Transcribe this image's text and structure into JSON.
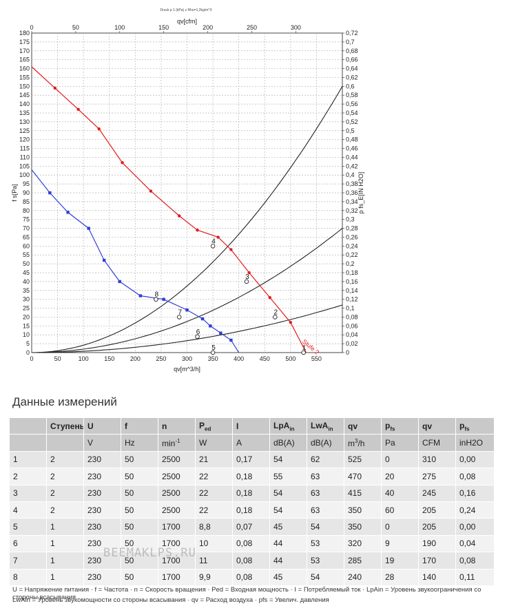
{
  "chart_data": {
    "type": "line",
    "top_note": "Druck p 1 (kPa) z Rho=1,2kg/m^3",
    "xlabel": "qv[m^3/h]",
    "x2label": "qv[cfm]",
    "ylabel": "f s[Pa]",
    "y2label": "p fs_E[IN H2O]",
    "xlim": [
      0,
      600
    ],
    "x2lim": [
      0,
      352.9
    ],
    "ylim": [
      0,
      180
    ],
    "y2lim": [
      0,
      0.72
    ],
    "xticks": [
      "0",
      "50",
      "100",
      "150",
      "200",
      "250",
      "300",
      "350",
      "400",
      "450",
      "500",
      "550"
    ],
    "x2ticks": [
      "0",
      "50",
      "100",
      "150",
      "200",
      "250",
      "300"
    ],
    "yticks": [
      "0",
      "5",
      "10",
      "15",
      "20",
      "25",
      "30",
      "35",
      "40",
      "45",
      "50",
      "55",
      "60",
      "65",
      "70",
      "75",
      "80",
      "85",
      "90",
      "95",
      "100",
      "105",
      "110",
      "115",
      "120",
      "125",
      "130",
      "135",
      "140",
      "145",
      "150",
      "155",
      "160",
      "165",
      "170",
      "175",
      "180"
    ],
    "y2ticks": [
      "0",
      "0,02",
      "0,04",
      "0,06",
      "0,08",
      "0,1",
      "0,12",
      "0,14",
      "0,16",
      "0,18",
      "0,2",
      "0,22",
      "0,24",
      "0,26",
      "0,28",
      "0,3",
      "0,32",
      "0,34",
      "0,36",
      "0,38",
      "0,4",
      "0,42",
      "0,44",
      "0,46",
      "0,48",
      "0,5",
      "0,52",
      "0,54",
      "0,56",
      "0,58",
      "0,6",
      "0,62",
      "0,64",
      "0,66",
      "0,68",
      "0,7",
      "0,72"
    ],
    "grid": true,
    "series": [
      {
        "name": "",
        "color": "#e31a1c",
        "marker": "circle",
        "x": [
          0,
          45,
          90,
          130,
          175,
          230,
          285,
          320,
          360,
          385,
          420,
          460,
          500,
          530
        ],
        "y": [
          161,
          149,
          137,
          126,
          107,
          91,
          77,
          69,
          65,
          58,
          45,
          31,
          17,
          0
        ]
      },
      {
        "name": "",
        "color": "#2f3fd6",
        "marker": "square",
        "x": [
          0,
          35,
          70,
          110,
          140,
          170,
          210,
          255,
          300,
          330,
          345,
          365,
          385,
          400
        ],
        "y": [
          103,
          90,
          79,
          70,
          52,
          40,
          32,
          30,
          24,
          19,
          15,
          11,
          7,
          0
        ]
      }
    ],
    "system_curves": [
      {
        "color": "#222222",
        "x": [
          0,
          100,
          200,
          300,
          400,
          500,
          600
        ],
        "y": [
          0,
          4.2,
          16.7,
          37.5,
          66.7,
          104.2,
          150
        ]
      },
      {
        "color": "#222222",
        "x": [
          0,
          100,
          200,
          300,
          400,
          500,
          600
        ],
        "y": [
          0,
          1.9,
          7.8,
          17.5,
          31.1,
          48.6,
          70
        ]
      },
      {
        "color": "#222222",
        "x": [
          0,
          100,
          200,
          300,
          400,
          500,
          600
        ],
        "y": [
          0,
          0.7,
          3,
          6.7,
          11.9,
          18.6,
          26.8
        ]
      }
    ],
    "point_labels": [
      {
        "text": "8",
        "x": 240,
        "y": 30
      },
      {
        "text": "7",
        "x": 285,
        "y": 20
      },
      {
        "text": "6",
        "x": 320,
        "y": 9
      },
      {
        "text": "5",
        "x": 350,
        "y": 0
      },
      {
        "text": "4",
        "x": 350,
        "y": 60
      },
      {
        "text": "3",
        "x": 415,
        "y": 40
      },
      {
        "text": "2",
        "x": 470,
        "y": 20
      },
      {
        "text": "1",
        "x": 525,
        "y": 0
      }
    ],
    "annotation": {
      "text": "Stufe 2",
      "x": 535,
      "y": 2
    }
  },
  "section_title": "Данные измерений",
  "table": {
    "headers": [
      "",
      "Ступень",
      "U",
      "f",
      "n",
      "P",
      "I",
      "LpA",
      "LwA",
      "qv",
      "p",
      "qv",
      "p"
    ],
    "header_subs": [
      "",
      "",
      "",
      "",
      "",
      "ed",
      "",
      "in",
      "in",
      "",
      "fs",
      "",
      "fs"
    ],
    "units": [
      "",
      "",
      "V",
      "Hz",
      "min",
      "W",
      "A",
      "dB(A)",
      "dB(A)",
      "m",
      "Pa",
      "CFM",
      "inH2O"
    ],
    "unit_sups": [
      "",
      "",
      "",
      "",
      "-1",
      "",
      "",
      "",
      "",
      "3",
      "",
      "",
      ""
    ],
    "unit_tails": [
      "",
      "",
      "",
      "",
      "",
      "",
      "",
      "",
      "",
      "/h",
      "",
      "",
      ""
    ],
    "rows": [
      [
        "1",
        "2",
        "230",
        "50",
        "2500",
        "21",
        "0,17",
        "54",
        "62",
        "525",
        "0",
        "310",
        "0,00"
      ],
      [
        "2",
        "2",
        "230",
        "50",
        "2500",
        "22",
        "0,18",
        "55",
        "63",
        "470",
        "20",
        "275",
        "0,08"
      ],
      [
        "3",
        "2",
        "230",
        "50",
        "2500",
        "22",
        "0,18",
        "54",
        "63",
        "415",
        "40",
        "245",
        "0,16"
      ],
      [
        "4",
        "2",
        "230",
        "50",
        "2500",
        "22",
        "0,18",
        "54",
        "63",
        "350",
        "60",
        "205",
        "0,24"
      ],
      [
        "5",
        "1",
        "230",
        "50",
        "1700",
        "8,8",
        "0,07",
        "45",
        "54",
        "350",
        "0",
        "205",
        "0,00"
      ],
      [
        "6",
        "1",
        "230",
        "50",
        "1700",
        "10",
        "0,08",
        "44",
        "53",
        "320",
        "9",
        "190",
        "0,04"
      ],
      [
        "7",
        "1",
        "230",
        "50",
        "1700",
        "11",
        "0,08",
        "44",
        "53",
        "285",
        "19",
        "170",
        "0,08"
      ],
      [
        "8",
        "1",
        "230",
        "50",
        "1700",
        "9,9",
        "0,08",
        "45",
        "54",
        "240",
        "28",
        "140",
        "0,11"
      ]
    ]
  },
  "legend": {
    "line1": "U = Напряжение питания · f = Частота · n = Скорость вращения · Ped = Входная мощность · I = Потребляемый ток · LpAin = Уровень звукоограничения со стороны всасывания",
    "line2": "LwAin = Уровень звукомощности со стороны всасывания · qv = Расход воздуха · pfs = Увелич. давления"
  },
  "watermark": "BEEMAKLPS.RU"
}
